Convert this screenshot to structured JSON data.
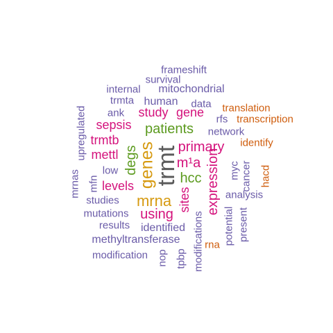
{
  "colors": {
    "purple": "#6a5ba8",
    "pink": "#d4127c",
    "green": "#5b9a1e",
    "gold": "#d69a11",
    "orange": "#cf5d0d",
    "dark": "#5a5a5a"
  },
  "words": [
    {
      "text": "frameshift",
      "color": "purple"
    },
    {
      "text": "survival",
      "color": "purple"
    },
    {
      "text": "internal",
      "color": "purple"
    },
    {
      "text": "mitochondrial",
      "color": "purple"
    },
    {
      "text": "trmta",
      "color": "purple"
    },
    {
      "text": "human",
      "color": "purple"
    },
    {
      "text": "data",
      "color": "purple"
    },
    {
      "text": "translation",
      "color": "orange"
    },
    {
      "text": "ank",
      "color": "purple"
    },
    {
      "text": "study",
      "color": "pink"
    },
    {
      "text": "gene",
      "color": "pink"
    },
    {
      "text": "rfs",
      "color": "purple"
    },
    {
      "text": "transcription",
      "color": "orange"
    },
    {
      "text": "upregulated",
      "color": "purple"
    },
    {
      "text": "sepsis",
      "color": "pink"
    },
    {
      "text": "patients",
      "color": "green"
    },
    {
      "text": "network",
      "color": "purple"
    },
    {
      "text": "trmtb",
      "color": "pink"
    },
    {
      "text": "identify",
      "color": "orange"
    },
    {
      "text": "primary",
      "color": "pink"
    },
    {
      "text": "mettl",
      "color": "pink"
    },
    {
      "text": "degs",
      "color": "green"
    },
    {
      "text": "genes",
      "color": "gold"
    },
    {
      "text": "trmt",
      "color": "dark"
    },
    {
      "text": "m¹a",
      "color": "pink"
    },
    {
      "text": "low",
      "color": "purple"
    },
    {
      "text": "myc",
      "color": "purple"
    },
    {
      "text": "mrnas",
      "color": "purple"
    },
    {
      "text": "mfn",
      "color": "purple"
    },
    {
      "text": "hcc",
      "color": "green"
    },
    {
      "text": "expression",
      "color": "pink"
    },
    {
      "text": "cancer",
      "color": "purple"
    },
    {
      "text": "hacd",
      "color": "orange"
    },
    {
      "text": "levels",
      "color": "pink"
    },
    {
      "text": "analysis",
      "color": "purple"
    },
    {
      "text": "studies",
      "color": "purple"
    },
    {
      "text": "mrna",
      "color": "gold"
    },
    {
      "text": "sites",
      "color": "pink"
    },
    {
      "text": "mutations",
      "color": "purple"
    },
    {
      "text": "using",
      "color": "pink"
    },
    {
      "text": "results",
      "color": "purple"
    },
    {
      "text": "identified",
      "color": "purple"
    },
    {
      "text": "potential",
      "color": "purple"
    },
    {
      "text": "present",
      "color": "purple"
    },
    {
      "text": "modifications",
      "color": "purple"
    },
    {
      "text": "methyltransferase",
      "color": "purple"
    },
    {
      "text": "rna",
      "color": "orange"
    },
    {
      "text": "modification",
      "color": "purple"
    },
    {
      "text": "nop",
      "color": "purple"
    },
    {
      "text": "tpbp",
      "color": "purple"
    }
  ]
}
